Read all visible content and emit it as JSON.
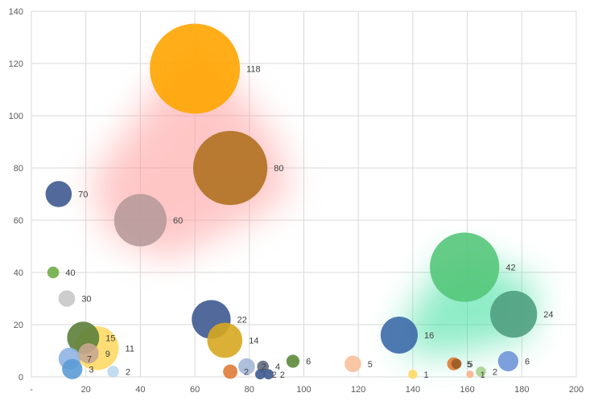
{
  "chart_data": {
    "type": "scatter",
    "title": "",
    "xlabel": "",
    "ylabel": "",
    "xlim": [
      0,
      200
    ],
    "ylim": [
      0,
      140
    ],
    "x_ticks": [
      "-",
      "20",
      "40",
      "60",
      "80",
      "100",
      "120",
      "140",
      "160",
      "180",
      "200"
    ],
    "y_ticks": [
      "0",
      "20",
      "40",
      "60",
      "80",
      "100",
      "120",
      "140"
    ],
    "grid": true,
    "legend": "none",
    "highlight_regions": [
      {
        "color": "#ff9999",
        "points": [
          [
            22,
            75
          ],
          [
            60,
            130
          ],
          [
            90,
            90
          ],
          [
            95,
            70
          ],
          [
            80,
            60
          ],
          [
            50,
            45
          ],
          [
            28,
            55
          ]
        ]
      },
      {
        "color": "#33dd99",
        "points": [
          [
            135,
            18
          ],
          [
            155,
            48
          ],
          [
            185,
            36
          ],
          [
            183,
            16
          ],
          [
            160,
            10
          ],
          [
            140,
            8
          ]
        ]
      }
    ],
    "points": [
      {
        "x": 60,
        "y": 118,
        "size": 118,
        "label": "118",
        "color": "#ffa500"
      },
      {
        "x": 73,
        "y": 80,
        "size": 80,
        "label": "80",
        "color": "#b07020"
      },
      {
        "x": 10,
        "y": 70,
        "size": 10,
        "label": "70",
        "color": "#3e5a90"
      },
      {
        "x": 40,
        "y": 60,
        "size": 40,
        "label": "60",
        "color": "#b89a9a"
      },
      {
        "x": 8,
        "y": 40,
        "size": 2,
        "label": "40",
        "color": "#70ad47"
      },
      {
        "x": 13,
        "y": 30,
        "size": 4,
        "label": "30",
        "color": "#c8c8c8"
      },
      {
        "x": 66,
        "y": 22,
        "size": 22,
        "label": "22",
        "color": "#3e5a90"
      },
      {
        "x": 159,
        "y": 42,
        "size": 70,
        "label": "42",
        "color": "#55c77a"
      },
      {
        "x": 177,
        "y": 24,
        "size": 32,
        "label": "24",
        "color": "#4f9e80"
      },
      {
        "x": 135,
        "y": 16,
        "size": 20,
        "label": "16",
        "color": "#3d6aa8"
      },
      {
        "x": 19,
        "y": 15,
        "size": 15,
        "label": "15",
        "color": "#5b7f3a"
      },
      {
        "x": 71,
        "y": 14,
        "size": 18,
        "label": "14",
        "color": "#d6a820"
      },
      {
        "x": 24,
        "y": 11,
        "size": 28,
        "label": "11",
        "color": "#ffd966"
      },
      {
        "x": 21,
        "y": 9,
        "size": 6,
        "label": "9",
        "color": "#c9a890"
      },
      {
        "x": 14,
        "y": 7,
        "size": 7,
        "label": "7",
        "color": "#8fb4e3"
      },
      {
        "x": 96,
        "y": 6,
        "size": 2.5,
        "label": "6",
        "color": "#5b8a3a"
      },
      {
        "x": 175,
        "y": 6,
        "size": 6,
        "label": "6",
        "color": "#6f96d8"
      },
      {
        "x": 118,
        "y": 5,
        "size": 4,
        "label": "5",
        "color": "#f8c09c"
      },
      {
        "x": 155,
        "y": 5,
        "size": 2.5,
        "label": "5",
        "color": "#e07b39"
      },
      {
        "x": 156,
        "y": 5,
        "size": 1.5,
        "label": "5",
        "color": "#9a5c20"
      },
      {
        "x": 85,
        "y": 4,
        "size": 2,
        "label": "4",
        "color": "#606a80"
      },
      {
        "x": 15,
        "y": 3,
        "size": 6,
        "label": "3",
        "color": "#5b9bd5"
      },
      {
        "x": 30,
        "y": 2,
        "size": 2,
        "label": "2",
        "color": "#bdd7ee"
      },
      {
        "x": 73,
        "y": 2,
        "size": 3,
        "label": "2",
        "color": "#e07b39"
      },
      {
        "x": 79,
        "y": 4,
        "size": 4,
        "label": "2",
        "color": "#a5b8d8"
      },
      {
        "x": 84,
        "y": 1,
        "size": 1.5,
        "label": "2",
        "color": "#3e5a90"
      },
      {
        "x": 87,
        "y": 1,
        "size": 1.5,
        "label": "2",
        "color": "#3e5a90"
      },
      {
        "x": 165,
        "y": 2,
        "size": 1.5,
        "label": "2",
        "color": "#a9d18e"
      },
      {
        "x": 140,
        "y": 1,
        "size": 1.2,
        "label": "1",
        "color": "#ffd966"
      },
      {
        "x": 161,
        "y": 1,
        "size": 0.8,
        "label": "1",
        "color": "#f8b48a"
      }
    ]
  }
}
